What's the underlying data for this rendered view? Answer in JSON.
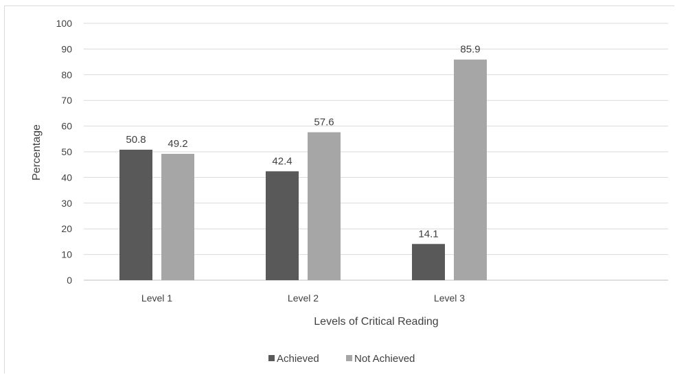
{
  "chart_data": {
    "type": "bar",
    "categories": [
      "Level 1",
      "Level 2",
      "Level 3"
    ],
    "series": [
      {
        "name": "Achieved",
        "values": [
          50.8,
          42.4,
          14.1
        ],
        "color": "#595959"
      },
      {
        "name": "Not Achieved",
        "values": [
          49.2,
          57.6,
          85.9
        ],
        "color": "#a6a6a6"
      }
    ],
    "data_labels": [
      [
        "50.8",
        "42.4",
        "14.1"
      ],
      [
        "49.2",
        "57.6",
        "85.9"
      ]
    ],
    "title": "",
    "xlabel": "Levels of Critical Reading",
    "ylabel": "Percentage",
    "ylim": [
      0,
      100
    ],
    "yticks": [
      0,
      10,
      20,
      30,
      40,
      50,
      60,
      70,
      80,
      90,
      100
    ],
    "grid": true,
    "legend": "bottom",
    "gridline_color": "#d9d9d9"
  }
}
